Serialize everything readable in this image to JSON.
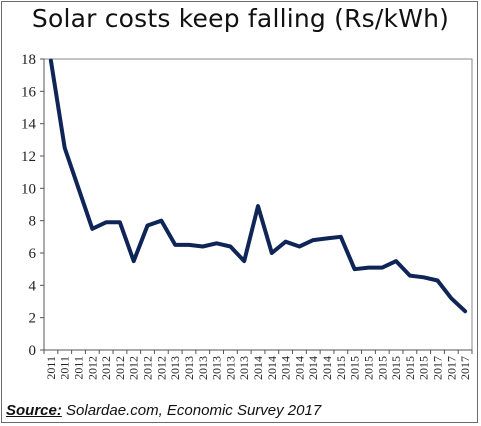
{
  "chart_data": {
    "type": "line",
    "title": "Solar costs keep falling (Rs/kWh)",
    "xlabel": "",
    "ylabel": "",
    "ylim": [
      0,
      18
    ],
    "yticks": [
      0,
      2,
      4,
      6,
      8,
      10,
      12,
      14,
      16,
      18
    ],
    "grid": false,
    "legend": "none",
    "x": [
      "2011",
      "2011",
      "2011",
      "2012",
      "2012",
      "2012",
      "2012",
      "2012",
      "2012",
      "2013",
      "2013",
      "2013",
      "2013",
      "2013",
      "2013",
      "2014",
      "2014",
      "2014",
      "2014",
      "2014",
      "2014",
      "2015",
      "2015",
      "2015",
      "2015",
      "2015",
      "2015",
      "2015",
      "2017",
      "2017",
      "2017"
    ],
    "series": [
      {
        "values": [
          17.9,
          12.5,
          10.0,
          7.5,
          7.9,
          7.9,
          5.5,
          7.7,
          8.0,
          6.5,
          6.5,
          6.4,
          6.6,
          6.4,
          5.5,
          8.9,
          6.0,
          6.7,
          6.4,
          6.8,
          6.9,
          7.0,
          5.0,
          5.1,
          5.1,
          5.5,
          4.6,
          4.5,
          4.3,
          3.2,
          2.4
        ]
      }
    ],
    "line_color": "#0f2557",
    "source_label": "Source:",
    "source_text": "Solardae.com, Economic Survey 2017"
  }
}
